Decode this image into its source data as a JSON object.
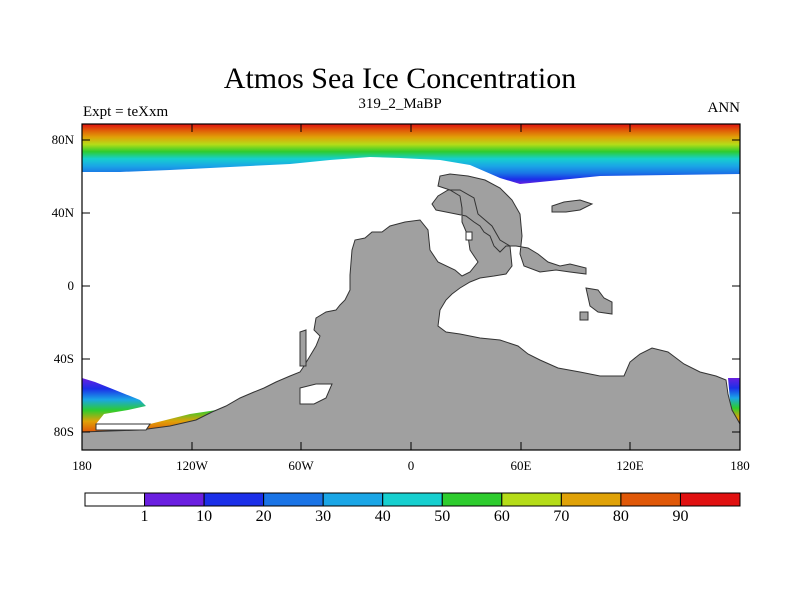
{
  "header": {
    "title": "Atmos Sea Ice Concentration",
    "subtitle": "319_2_MaBP",
    "left_label": "Expt = teXxm",
    "right_label": "ANN"
  },
  "axes": {
    "lat_labels": [
      "80N",
      "40N",
      "0",
      "40S",
      "80S"
    ],
    "lon_labels": [
      "180",
      "120W",
      "60W",
      "0",
      "60E",
      "120E",
      "180"
    ]
  },
  "colorbar": {
    "labels": [
      "1",
      "10",
      "20",
      "30",
      "40",
      "50",
      "60",
      "70",
      "80",
      "90"
    ],
    "colors": [
      "#ffffff",
      "#6a1fe0",
      "#1b2fe8",
      "#1a74e6",
      "#1aa6e6",
      "#16cfcf",
      "#2ecc2e",
      "#b5dc18",
      "#e0a208",
      "#e05808",
      "#e01010"
    ]
  },
  "colors": {
    "land": "#a0a0a0",
    "ocean": "#ffffff"
  }
}
